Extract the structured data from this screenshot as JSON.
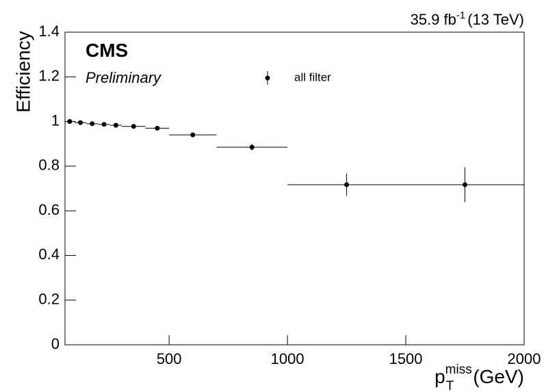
{
  "chart_data": {
    "type": "errorbar",
    "lumi": {
      "text": "35.9 fb",
      "sup": "-1",
      "energy": "(13 TeV)"
    },
    "experiment": "CMS",
    "status": "Preliminary",
    "ylabel": "Efficiency",
    "xlabel": {
      "symbol": "p",
      "sub": "T",
      "sup": "miss",
      "unit": "(GeV)"
    },
    "series": [
      {
        "name": "all filter",
        "color": "#000000",
        "bins": [
          60,
          100,
          150,
          200,
          250,
          300,
          400,
          500,
          700,
          1000,
          1500,
          2000
        ],
        "values": [
          1.0,
          0.995,
          0.99,
          0.987,
          0.983,
          0.978,
          0.97,
          0.94,
          0.885,
          0.717,
          0.717
        ],
        "errors": [
          0.002,
          0.002,
          0.002,
          0.003,
          0.003,
          0.004,
          0.005,
          0.007,
          0.015,
          0.05,
          0.078
        ]
      }
    ],
    "xlim": [
      60,
      2000
    ],
    "xticks": [
      500,
      1000,
      1500,
      2000
    ],
    "ylim": [
      0,
      1.4
    ],
    "yticks": [
      0,
      0.2,
      0.4,
      0.6,
      0.8,
      1,
      1.2,
      1.4
    ]
  }
}
